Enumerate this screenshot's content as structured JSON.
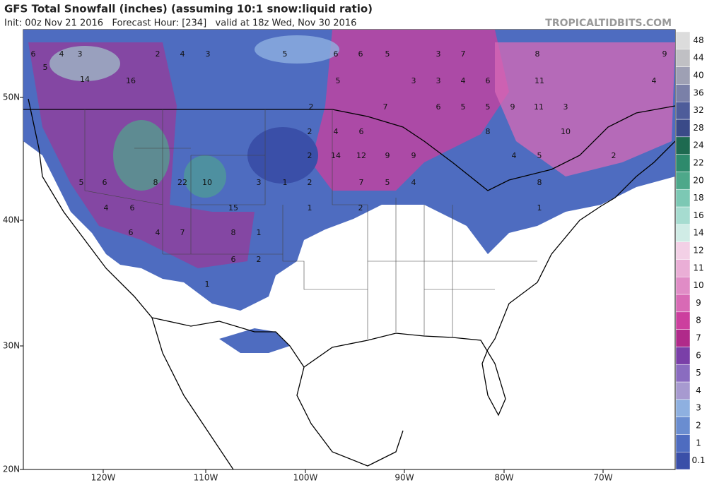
{
  "header": {
    "title": "GFS Total Snowfall (inches) (assuming 10:1 snow:liquid ratio)",
    "subtitle": "Init: 00z Nov 21 2016   Forecast Hour: [234]   valid at 18z Wed, Nov 30 2016",
    "brand": "TROPICALTIDBITS.COM"
  },
  "map": {
    "lat_labels": [
      "50N",
      "40N",
      "30N",
      "20N"
    ],
    "lon_labels": [
      "120W",
      "110W",
      "100W",
      "90W",
      "80W",
      "70W"
    ],
    "snow_labels": [
      6,
      4,
      3,
      5,
      14,
      16,
      2,
      4,
      3,
      5,
      6,
      6,
      5,
      3,
      7,
      5,
      3,
      3,
      4,
      6,
      11,
      4,
      8,
      9,
      2,
      7,
      6,
      5,
      5,
      9,
      3,
      11,
      2,
      4,
      6,
      8,
      10,
      2,
      14,
      12,
      9,
      9,
      4,
      5,
      2,
      22,
      10,
      8,
      6,
      5,
      3,
      1,
      2,
      7,
      5,
      4,
      8,
      1,
      2,
      1,
      6,
      4,
      15,
      4,
      6,
      7,
      8,
      1,
      6,
      2,
      1
    ]
  },
  "colorbar": {
    "levels": [
      0.1,
      1,
      2,
      3,
      4,
      5,
      6,
      7,
      8,
      9,
      10,
      11,
      12,
      14,
      16,
      18,
      20,
      22,
      24,
      28,
      32,
      36,
      40,
      44,
      48
    ],
    "colors": [
      "#3a4fa8",
      "#4e6cc0",
      "#6a8dd0",
      "#8eb0e0",
      "#a79ad0",
      "#8a6cc0",
      "#7a3fa8",
      "#b02a8a",
      "#cc3f9e",
      "#d86ab5",
      "#e08cc6",
      "#eaaed6",
      "#f3d0e6",
      "#d0ece6",
      "#a6dcd0",
      "#7cc8b4",
      "#4ea88a",
      "#2e8a6c",
      "#1e6a50",
      "#3a4a88",
      "#4e5c9a",
      "#7a80a8",
      "#9ea0b4",
      "#c0c0c4",
      "#dcdcdc"
    ]
  }
}
